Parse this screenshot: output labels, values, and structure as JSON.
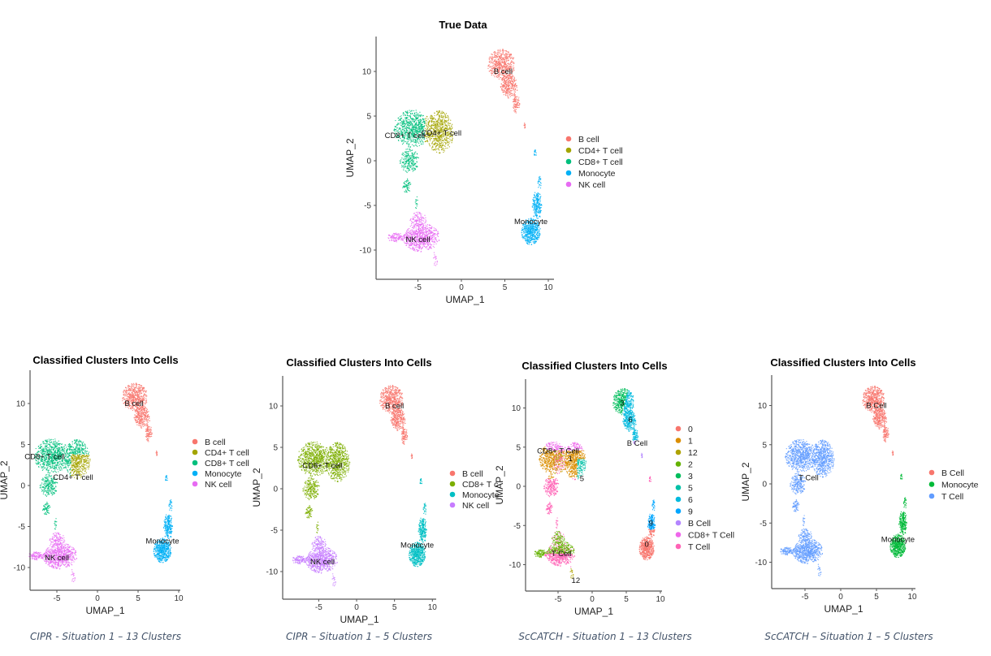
{
  "chart_data": [
    {
      "type": "scatter",
      "title": "True Data",
      "xlabel": "UMAP_1",
      "ylabel": "UMAP_2",
      "xlim": [
        -9.5,
        10.5
      ],
      "ylim": [
        -13,
        13.5
      ],
      "xticks": [
        "-5",
        "0",
        "5",
        "10"
      ],
      "yticks": [
        "10",
        "5",
        "0",
        "-5",
        "-10"
      ],
      "xtick_values": [
        -5,
        0,
        5,
        10
      ],
      "ytick_values": [
        10,
        5,
        0,
        -5,
        -10
      ],
      "grid": false,
      "legend_position": "right",
      "legend": [
        {
          "label": "B cell",
          "color": "#F8766D"
        },
        {
          "label": "CD4+ T cell",
          "color": "#A3A500"
        },
        {
          "label": "CD8+ T cell",
          "color": "#00BF7D"
        },
        {
          "label": "Monocyte",
          "color": "#00B0F6"
        },
        {
          "label": "NK cell",
          "color": "#E76BF3"
        }
      ],
      "cluster_labels": [
        {
          "text": "B cell",
          "x": 4.8,
          "y": 10
        },
        {
          "text": "CD8+ T cell",
          "x": -6.5,
          "y": 2.8
        },
        {
          "text": "CD4+ T cell",
          "x": -2.3,
          "y": 3.1
        },
        {
          "text": "Monocyte",
          "x": 8,
          "y": -6.8
        },
        {
          "text": "NK cell",
          "x": -5,
          "y": -8.8
        }
      ],
      "caption": ""
    },
    {
      "type": "scatter",
      "title": "Classified Clusters Into Cells",
      "xlabel": "UMAP_1",
      "ylabel": "UMAP_2",
      "xlim": [
        -9.5,
        10.5
      ],
      "ylim": [
        -13,
        13.5
      ],
      "xticks": [
        "-5",
        "0",
        "5",
        "10"
      ],
      "yticks": [
        "10",
        "5",
        "0",
        "-5",
        "-10"
      ],
      "xtick_values": [
        -5,
        0,
        5,
        10
      ],
      "ytick_values": [
        10,
        5,
        0,
        -5,
        -10
      ],
      "grid": false,
      "legend_position": "right",
      "legend": [
        {
          "label": "B cell",
          "color": "#F8766D"
        },
        {
          "label": "CD4+ T cell",
          "color": "#A3A500"
        },
        {
          "label": "CD8+ T cell",
          "color": "#00BF7D"
        },
        {
          "label": "Monocyte",
          "color": "#00B0F6"
        },
        {
          "label": "NK cell",
          "color": "#E76BF3"
        }
      ],
      "cluster_labels": [
        {
          "text": "B cell",
          "x": 4.5,
          "y": 10
        },
        {
          "text": "CD8+ T cell",
          "x": -6.5,
          "y": 3.5
        },
        {
          "text": "CD4+ T cell",
          "x": -3,
          "y": 1
        },
        {
          "text": "Monocyte",
          "x": 8,
          "y": -6.8
        },
        {
          "text": "NK cell",
          "x": -5,
          "y": -8.8
        }
      ],
      "caption": "CIPR - Situation 1 – 13 Clusters"
    },
    {
      "type": "scatter",
      "title": "Classified Clusters Into Cells",
      "xlabel": "UMAP_1",
      "ylabel": "UMAP_2",
      "xlim": [
        -9.5,
        10.5
      ],
      "ylim": [
        -13,
        13.5
      ],
      "xticks": [
        "-5",
        "0",
        "5",
        "10"
      ],
      "yticks": [
        "10",
        "5",
        "0",
        "-5",
        "-10"
      ],
      "xtick_values": [
        -5,
        0,
        5,
        10
      ],
      "ytick_values": [
        10,
        5,
        0,
        -5,
        -10
      ],
      "grid": false,
      "legend_position": "right",
      "legend": [
        {
          "label": "B cell",
          "color": "#F8766D"
        },
        {
          "label": "CD8+ T c",
          "color": "#7CAE00"
        },
        {
          "label": "Monocyte",
          "color": "#00BFC4"
        },
        {
          "label": "NK cell",
          "color": "#C77CFF"
        }
      ],
      "cluster_labels": [
        {
          "text": "B cell",
          "x": 5,
          "y": 10
        },
        {
          "text": "CD8+ T cell",
          "x": -4.5,
          "y": 2.8
        },
        {
          "text": "Monocyte",
          "x": 8,
          "y": -6.8
        },
        {
          "text": "NK cell",
          "x": -4.5,
          "y": -8.8
        }
      ],
      "caption": "CIPR – Situation 1 – 5 Clusters"
    },
    {
      "type": "scatter",
      "title": "Classified Clusters Into Cells",
      "xlabel": "UMAP_1",
      "ylabel": "UMAP_2",
      "xlim": [
        -9.5,
        10.5
      ],
      "ylim": [
        -13,
        13.5
      ],
      "xticks": [
        "-5",
        "0",
        "5",
        "10"
      ],
      "yticks": [
        "10",
        "5",
        "0",
        "-5",
        "-10"
      ],
      "xtick_values": [
        -5,
        0,
        5,
        10
      ],
      "ytick_values": [
        10,
        5,
        0,
        -5,
        -10
      ],
      "grid": false,
      "legend_position": "right",
      "legend": [
        {
          "label": "0",
          "color": "#F8766D"
        },
        {
          "label": "1",
          "color": "#DB8E00"
        },
        {
          "label": "12",
          "color": "#AEA200"
        },
        {
          "label": "2",
          "color": "#64B200"
        },
        {
          "label": "3",
          "color": "#00BD5C"
        },
        {
          "label": "5",
          "color": "#00C1A7"
        },
        {
          "label": "6",
          "color": "#00BADE"
        },
        {
          "label": "9",
          "color": "#00A6FF"
        },
        {
          "label": "B Cell",
          "color": "#B385FF"
        },
        {
          "label": "CD8+ T Cell",
          "color": "#EF67EB"
        },
        {
          "label": "T Cell",
          "color": "#FF63B6"
        }
      ],
      "cluster_labels": [
        {
          "text": "3",
          "x": 4.4,
          "y": 10.6
        },
        {
          "text": "6",
          "x": 5.6,
          "y": 8.5
        },
        {
          "text": "B Cell",
          "x": 6.6,
          "y": 5.5
        },
        {
          "text": "CD8+ T Cell",
          "x": -5,
          "y": 4.5
        },
        {
          "text": "1",
          "x": -3.2,
          "y": 3.5
        },
        {
          "text": "5",
          "x": -1.5,
          "y": 1
        },
        {
          "text": "9",
          "x": 8.6,
          "y": -4.7
        },
        {
          "text": "0",
          "x": 8,
          "y": -7.4
        },
        {
          "text": "T Cell",
          "x": -4.5,
          "y": -8.6
        },
        {
          "text": "12",
          "x": -2.4,
          "y": -12
        }
      ],
      "caption": "ScCATCH - Situation 1 – 13 Clusters"
    },
    {
      "type": "scatter",
      "title": "Classified Clusters Into Cells",
      "xlabel": "UMAP_1",
      "ylabel": "UMAP_2",
      "xlim": [
        -9.5,
        10.5
      ],
      "ylim": [
        -13,
        13.5
      ],
      "xticks": [
        "-5",
        "0",
        "5",
        "10"
      ],
      "yticks": [
        "10",
        "5",
        "0",
        "-5",
        "-10"
      ],
      "xtick_values": [
        -5,
        0,
        5,
        10
      ],
      "ytick_values": [
        10,
        5,
        0,
        -5,
        -10
      ],
      "grid": false,
      "legend_position": "right",
      "legend": [
        {
          "label": "B Cell",
          "color": "#F8766D"
        },
        {
          "label": "Monocyte",
          "color": "#00BA38"
        },
        {
          "label": "T Cell",
          "color": "#619CFF"
        }
      ],
      "cluster_labels": [
        {
          "text": "B Cell",
          "x": 5,
          "y": 10
        },
        {
          "text": "T Cell",
          "x": -4.5,
          "y": 0.8
        },
        {
          "text": "Monocyte",
          "x": 8,
          "y": -7.1
        }
      ],
      "caption": "ScCATCH – Situation 1 – 5 Clusters"
    }
  ]
}
